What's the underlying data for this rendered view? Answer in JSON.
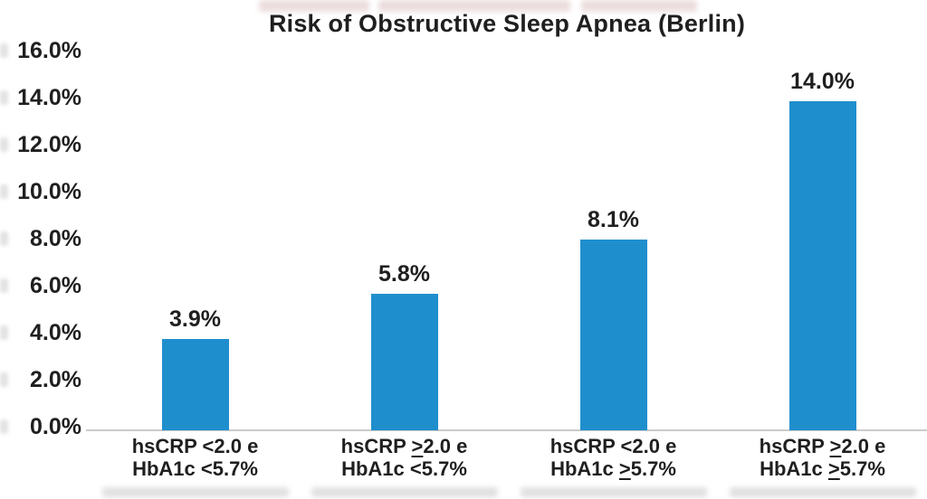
{
  "chart_data": {
    "type": "bar",
    "title": "Risk of Obstructive Sleep Apnea (Berlin)",
    "categories": [
      {
        "line1": "hsCRP <2.0 e",
        "line2": "HbA1c <5.7%"
      },
      {
        "line1": "hsCRP ≥2.0 e",
        "line2": "HbA1c <5.7%"
      },
      {
        "line1": "hsCRP <2.0 e",
        "line2": "HbA1c ≥5.7%"
      },
      {
        "line1": "hsCRP ≥2.0 e",
        "line2": "HbA1c ≥5.7%"
      }
    ],
    "values": [
      3.9,
      5.8,
      8.1,
      14.0
    ],
    "value_labels": [
      "3.9%",
      "5.8%",
      "8.1%",
      "14.0%"
    ],
    "xlabel": "",
    "ylabel": "",
    "ylim": [
      0,
      16
    ],
    "y_tick_step": 2,
    "y_tick_labels": [
      "0.0%",
      "2.0%",
      "4.0%",
      "6.0%",
      "8.0%",
      "10.0%",
      "12.0%",
      "14.0%",
      "16.0%"
    ],
    "grid": false,
    "legend": false,
    "bar_color": "#1f8ecd",
    "axis_line_color": "#cbcbcb",
    "text_color": "#1f1f1f",
    "background_color": "#ffffff"
  }
}
